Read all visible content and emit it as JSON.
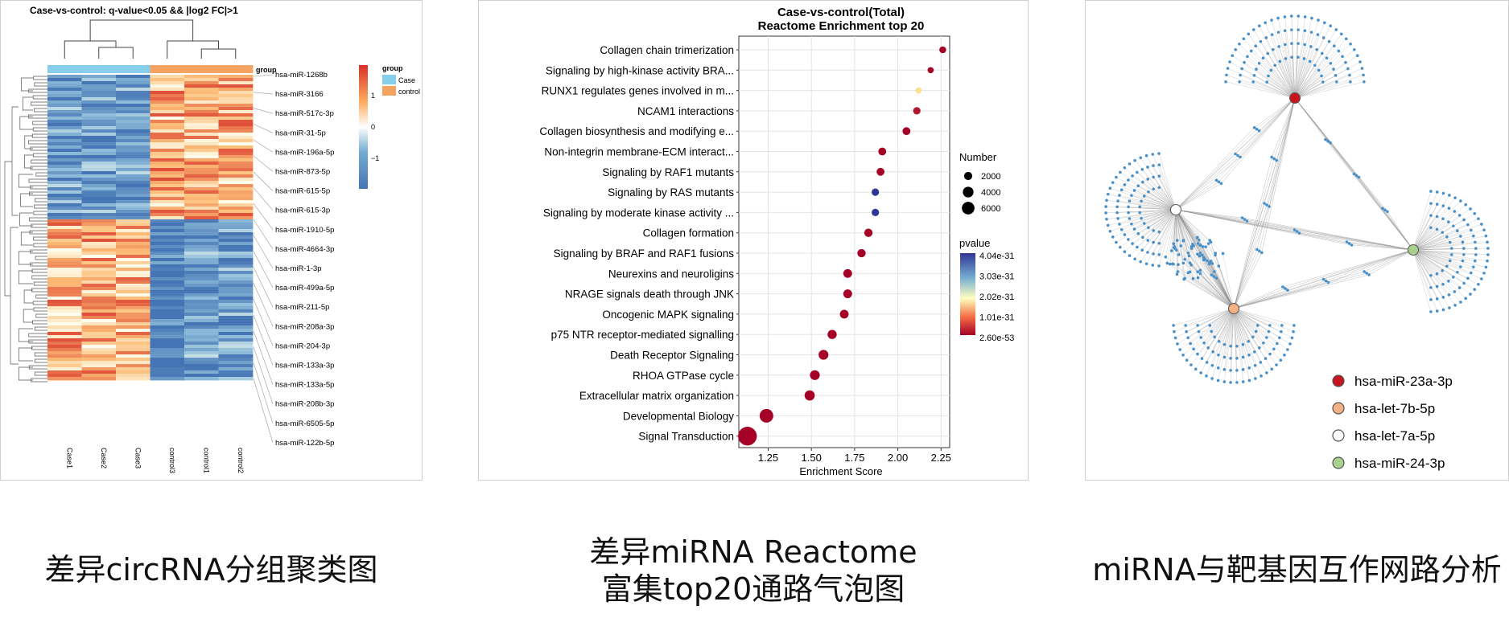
{
  "captions": {
    "heatmap": "差异circRNA分组聚类图",
    "reactome": [
      "差异miRNA Reactome",
      "富集top20通路气泡图"
    ],
    "network": "miRNA与靶基因互作网路分析"
  },
  "chart_data": [
    {
      "type": "heatmap",
      "title": "Case-vs-control: q-value<0.05 && |log2 FC|>1",
      "columns": [
        "Case1",
        "Case2",
        "Case3",
        "control3",
        "control1",
        "control2"
      ],
      "column_groups": [
        "Case",
        "Case",
        "Case",
        "control",
        "control",
        "control"
      ],
      "row_labels": [
        "hsa-miR-1268b",
        "hsa-miR-3166",
        "hsa-miR-517c-3p",
        "hsa-miR-31-5p",
        "hsa-miR-196a-5p",
        "hsa-miR-873-5p",
        "hsa-miR-615-5p",
        "hsa-miR-615-3p",
        "hsa-miR-1910-5p",
        "hsa-miR-4664-3p",
        "hsa-miR-1-3p",
        "hsa-miR-499a-5p",
        "hsa-miR-211-5p",
        "hsa-miR-208a-3p",
        "hsa-miR-204-3p",
        "hsa-miR-133a-3p",
        "hsa-miR-133a-5p",
        "hsa-miR-208b-3p",
        "hsa-miR-6505-5p",
        "hsa-miR-122b-5p"
      ],
      "legend_group": {
        "title": "group",
        "items": [
          {
            "label": "Case",
            "color": "#87ceeb"
          },
          {
            "label": "control",
            "color": "#f4a460"
          }
        ]
      },
      "color_scale": {
        "ticks": [
          "1",
          "0",
          "−1"
        ],
        "low": "#4575b4",
        "mid": "#ffffff",
        "high": "#d73027"
      }
    },
    {
      "type": "scatter",
      "title": [
        "Case-vs-control(Total)",
        "Reactome Enrichment top 20"
      ],
      "xlabel": "Enrichment Score",
      "xlim": [
        1.08,
        2.3
      ],
      "xticks": [
        "1.25",
        "1.50",
        "1.75",
        "2.00",
        "2.25"
      ],
      "categories": [
        "Collagen chain trimerization",
        "Signaling by high-kinase activity BRA...",
        "RUNX1 regulates genes involved in m...",
        "NCAM1 interactions",
        "Collagen biosynthesis and modifying e...",
        "Non-integrin membrane-ECM interact...",
        "Signaling by RAF1 mutants",
        "Signaling by RAS mutants",
        "Signaling by moderate kinase activity ...",
        "Collagen formation",
        "Signaling by BRAF and RAF1 fusions",
        "Neurexins and neuroligins",
        "NRAGE signals death through JNK",
        "Oncogenic MAPK signaling",
        "p75 NTR receptor-mediated signalling",
        "Death Receptor Signaling",
        "RHOA GTPase cycle",
        "Extracellular matrix organization",
        "Developmental Biology",
        "Signal Transduction"
      ],
      "x": [
        2.26,
        2.19,
        2.12,
        2.11,
        2.05,
        1.91,
        1.9,
        1.87,
        1.87,
        1.83,
        1.79,
        1.71,
        1.71,
        1.69,
        1.62,
        1.57,
        1.52,
        1.49,
        1.24,
        1.13
      ],
      "number": [
        300,
        200,
        200,
        400,
        500,
        500,
        500,
        400,
        400,
        600,
        600,
        700,
        700,
        700,
        800,
        1000,
        1000,
        1100,
        2500,
        5500
      ],
      "pvalue_color": [
        "#a50026",
        "#a50026",
        "#fee090",
        "#b2182b",
        "#a50026",
        "#a50026",
        "#a50026",
        "#313695",
        "#313695",
        "#a50026",
        "#a50026",
        "#a50026",
        "#a50026",
        "#a50026",
        "#a50026",
        "#a50026",
        "#a50026",
        "#a50026",
        "#a50026",
        "#a50026"
      ],
      "legend_size": {
        "title": "Number",
        "items": [
          2000,
          4000,
          6000
        ]
      },
      "legend_color": {
        "title": "pvalue",
        "labels": [
          "4.04e-31",
          "3.03e-31",
          "2.02e-31",
          "1.01e-31",
          "2.60e-53"
        ]
      }
    },
    {
      "type": "network",
      "hubs": [
        {
          "label": "hsa-miR-23a-3p",
          "color": "#c8141e"
        },
        {
          "label": "hsa-let-7b-5p",
          "color": "#f4b183"
        },
        {
          "label": "hsa-let-7a-5p",
          "color": "#ffffff"
        },
        {
          "label": "hsa-miR-24-3p",
          "color": "#a9d18e"
        }
      ],
      "target_color": "#4a90c8"
    }
  ]
}
